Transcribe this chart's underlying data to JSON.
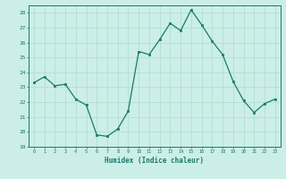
{
  "x": [
    0,
    1,
    2,
    3,
    4,
    5,
    6,
    7,
    8,
    9,
    10,
    11,
    12,
    13,
    14,
    15,
    16,
    17,
    18,
    19,
    20,
    21,
    22,
    23
  ],
  "y": [
    23.3,
    23.7,
    23.1,
    23.2,
    22.2,
    21.8,
    19.8,
    19.7,
    20.2,
    21.4,
    25.4,
    25.2,
    26.2,
    27.3,
    26.8,
    28.2,
    27.2,
    26.1,
    25.2,
    23.4,
    22.1,
    21.3,
    21.9,
    22.2
  ],
  "xlabel": "Humidex (Indice chaleur)",
  "xlim": [
    -0.5,
    23.5
  ],
  "ylim": [
    19,
    28.5
  ],
  "yticks": [
    19,
    20,
    21,
    22,
    23,
    24,
    25,
    26,
    27,
    28
  ],
  "xticks": [
    0,
    1,
    2,
    3,
    4,
    5,
    6,
    7,
    8,
    9,
    10,
    11,
    12,
    13,
    14,
    15,
    16,
    17,
    18,
    19,
    20,
    21,
    22,
    23
  ],
  "line_color": "#1a7a6a",
  "marker_color": "#1a7a6a",
  "bg_color": "#cceee8",
  "grid_color": "#aaddcc",
  "xlabel_color": "#1a7a6a",
  "tick_color": "#1a7a6a",
  "axis_color": "#1a7a6a"
}
